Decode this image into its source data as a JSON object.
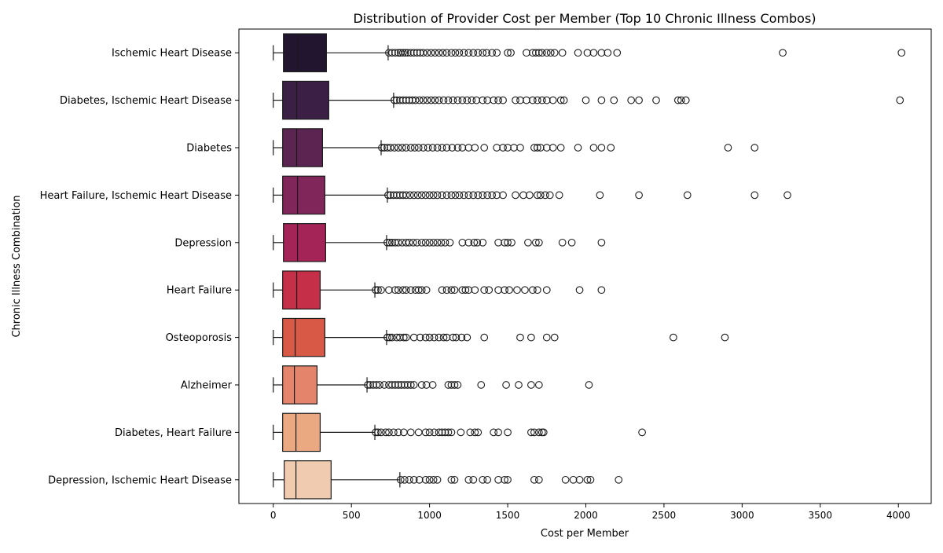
{
  "chart_data": {
    "type": "boxplot",
    "orientation": "horizontal",
    "title": "Distribution of Provider Cost per Member (Top 10 Chronic Illness Combos)",
    "xlabel": "Cost per Member",
    "ylabel": "Chronic Illness Combination",
    "xlim": [
      -220,
      4210
    ],
    "xticks": [
      0,
      500,
      1000,
      1500,
      2000,
      2500,
      3000,
      3500,
      4000
    ],
    "grid": false,
    "legend": "none",
    "categories": [
      {
        "name": "Ischemic Heart Disease",
        "color": "#221530",
        "whisker_low": 0,
        "q1": 65,
        "median": 155,
        "q3": 340,
        "whisker_high": 735,
        "outliers": [
          740,
          760,
          780,
          800,
          815,
          830,
          845,
          860,
          880,
          900,
          920,
          940,
          960,
          985,
          1010,
          1035,
          1060,
          1085,
          1110,
          1140,
          1165,
          1190,
          1220,
          1250,
          1280,
          1310,
          1340,
          1365,
          1400,
          1430,
          1500,
          1520,
          1620,
          1660,
          1680,
          1700,
          1720,
          1750,
          1775,
          1800,
          1850,
          1950,
          2010,
          2050,
          2100,
          2140,
          2200,
          3260,
          4020
        ]
      },
      {
        "name": "Diabetes, Ischemic Heart Disease",
        "color": "#3b1f45",
        "whisker_low": 0,
        "q1": 60,
        "median": 150,
        "q3": 355,
        "whisker_high": 770,
        "outliers": [
          775,
          790,
          810,
          830,
          850,
          870,
          890,
          910,
          935,
          960,
          985,
          1010,
          1035,
          1060,
          1090,
          1120,
          1150,
          1180,
          1210,
          1240,
          1270,
          1300,
          1340,
          1370,
          1410,
          1440,
          1470,
          1550,
          1580,
          1620,
          1660,
          1690,
          1720,
          1750,
          1790,
          1840,
          1860,
          2000,
          2100,
          2180,
          2290,
          2340,
          2450,
          2590,
          2610,
          2640,
          4010
        ]
      },
      {
        "name": "Diabetes",
        "color": "#5c2450",
        "whisker_low": 0,
        "q1": 60,
        "median": 150,
        "q3": 315,
        "whisker_high": 690,
        "outliers": [
          695,
          710,
          730,
          750,
          775,
          800,
          825,
          850,
          880,
          905,
          930,
          960,
          990,
          1020,
          1050,
          1080,
          1110,
          1145,
          1180,
          1210,
          1250,
          1290,
          1350,
          1430,
          1470,
          1500,
          1540,
          1580,
          1670,
          1690,
          1710,
          1750,
          1790,
          1840,
          1950,
          2050,
          2100,
          2160,
          2910,
          3080
        ]
      },
      {
        "name": "Heart Failure, Ischemic Heart Disease",
        "color": "#80265a",
        "whisker_low": 0,
        "q1": 60,
        "median": 155,
        "q3": 330,
        "whisker_high": 730,
        "outliers": [
          735,
          750,
          770,
          790,
          810,
          830,
          850,
          875,
          900,
          925,
          950,
          975,
          1000,
          1025,
          1050,
          1080,
          1110,
          1140,
          1165,
          1190,
          1220,
          1250,
          1280,
          1310,
          1340,
          1370,
          1400,
          1430,
          1470,
          1550,
          1600,
          1640,
          1690,
          1710,
          1740,
          1770,
          1830,
          2090,
          2340,
          2650,
          3080,
          3290
        ]
      },
      {
        "name": "Depression",
        "color": "#a42458",
        "whisker_low": 0,
        "q1": 65,
        "median": 155,
        "q3": 335,
        "whisker_high": 725,
        "outliers": [
          730,
          745,
          760,
          780,
          800,
          825,
          850,
          870,
          895,
          920,
          950,
          975,
          1000,
          1025,
          1050,
          1075,
          1100,
          1130,
          1210,
          1250,
          1285,
          1305,
          1340,
          1440,
          1480,
          1500,
          1525,
          1630,
          1680,
          1700,
          1850,
          1910,
          2100
        ]
      },
      {
        "name": "Heart Failure",
        "color": "#c53048",
        "whisker_low": 0,
        "q1": 60,
        "median": 150,
        "q3": 300,
        "whisker_high": 650,
        "outliers": [
          655,
          670,
          690,
          740,
          780,
          800,
          830,
          850,
          880,
          910,
          930,
          950,
          980,
          1080,
          1110,
          1140,
          1160,
          1210,
          1230,
          1250,
          1290,
          1350,
          1380,
          1440,
          1480,
          1510,
          1560,
          1610,
          1660,
          1690,
          1750,
          1960,
          2100
        ]
      },
      {
        "name": "Osteoporosis",
        "color": "#d95947",
        "whisker_low": 0,
        "q1": 60,
        "median": 140,
        "q3": 330,
        "whisker_high": 725,
        "outliers": [
          730,
          745,
          760,
          790,
          810,
          835,
          850,
          900,
          940,
          975,
          1000,
          1030,
          1060,
          1090,
          1110,
          1150,
          1170,
          1205,
          1240,
          1350,
          1580,
          1650,
          1750,
          1800,
          2560,
          2890
        ]
      },
      {
        "name": "Alzheimer",
        "color": "#e4846b",
        "whisker_low": 0,
        "q1": 60,
        "median": 135,
        "q3": 280,
        "whisker_high": 600,
        "outliers": [
          605,
          620,
          640,
          660,
          680,
          710,
          740,
          760,
          780,
          800,
          820,
          840,
          860,
          880,
          900,
          950,
          980,
          1020,
          1120,
          1140,
          1160,
          1180,
          1330,
          1490,
          1570,
          1650,
          1700,
          2020
        ]
      },
      {
        "name": "Diabetes, Heart Failure",
        "color": "#eba982",
        "whisker_low": 0,
        "q1": 60,
        "median": 145,
        "q3": 300,
        "whisker_high": 650,
        "outliers": [
          655,
          670,
          690,
          720,
          740,
          770,
          800,
          835,
          880,
          930,
          975,
          1000,
          1030,
          1060,
          1080,
          1100,
          1120,
          1140,
          1200,
          1260,
          1290,
          1310,
          1410,
          1440,
          1500,
          1650,
          1670,
          1700,
          1720,
          1730,
          2360
        ]
      },
      {
        "name": "Depression, Ischemic Heart Disease",
        "color": "#f0cbb0",
        "whisker_low": 0,
        "q1": 70,
        "median": 145,
        "q3": 370,
        "whisker_high": 810,
        "outliers": [
          815,
          840,
          870,
          900,
          935,
          975,
          1000,
          1025,
          1050,
          1140,
          1160,
          1250,
          1280,
          1340,
          1370,
          1440,
          1480,
          1500,
          1670,
          1700,
          1870,
          1920,
          1960,
          2010,
          2030,
          2210
        ]
      }
    ]
  }
}
